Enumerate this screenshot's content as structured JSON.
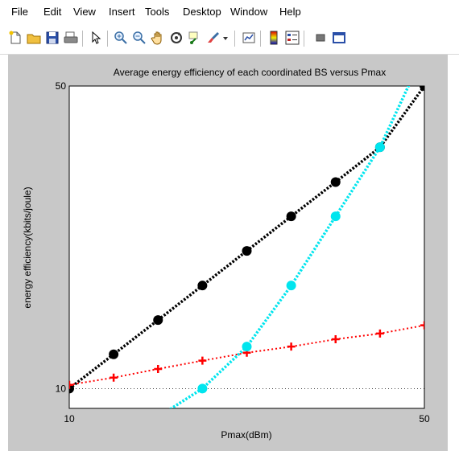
{
  "menu": [
    "File",
    "Edit",
    "View",
    "Insert",
    "Tools",
    "Desktop",
    "Window",
    "Help"
  ],
  "toolbar_icons": [
    "new-file-icon",
    "open-folder-icon",
    "save-icon",
    "print-icon",
    "pointer-icon",
    "zoom-in-icon",
    "zoom-out-icon",
    "pan-hand-icon",
    "rotate-3d-icon",
    "data-cursor-icon",
    "brush-icon",
    "brush-dropdown-icon",
    "link-plot-icon",
    "colorbar-icon",
    "legend-icon",
    "hide-plot-tools-icon",
    "show-plot-tools-icon"
  ],
  "colors": {
    "black_series": "#000000",
    "red_series": "#ff0000",
    "cyan_series": "#00e5ee",
    "figure_bg": "#c8c8c8"
  },
  "chart_data": {
    "type": "line",
    "title": "Average energy efficiency of each coordinated BS versus Pmax",
    "xlabel": "Pmax(dBm)",
    "ylabel": "energy efficiency(kbits/joule)",
    "xlim": [
      10,
      50
    ],
    "ylim": [
      9,
      50
    ],
    "y_scale": "log",
    "x_tick_labels": [
      "10",
      "50"
    ],
    "y_tick_labels": [
      "10",
      "50"
    ],
    "grid": "dotted at ticks",
    "legend": "none",
    "series": [
      {
        "color": "#000000",
        "marker": "circle",
        "line": "dotted",
        "x": [
          10,
          15,
          20,
          25,
          30,
          35,
          40,
          45,
          50
        ],
        "y": [
          10.0,
          12.0,
          14.4,
          17.3,
          20.8,
          25.0,
          30.0,
          36.1,
          50.0
        ]
      },
      {
        "color": "#ff0000",
        "marker": "plus",
        "line": "dotted",
        "x": [
          10,
          15,
          20,
          25,
          30,
          35,
          40,
          45,
          50
        ],
        "y": [
          10.2,
          10.6,
          11.1,
          11.6,
          12.1,
          12.5,
          13.0,
          13.4,
          14.0
        ]
      },
      {
        "color": "#00e5ee",
        "marker": "circle",
        "line": "dotted",
        "x": [
          20,
          25,
          30,
          35,
          40,
          45,
          50
        ],
        "y": [
          8.6,
          10.0,
          12.5,
          17.3,
          25.0,
          36.1,
          60.0
        ]
      }
    ]
  }
}
